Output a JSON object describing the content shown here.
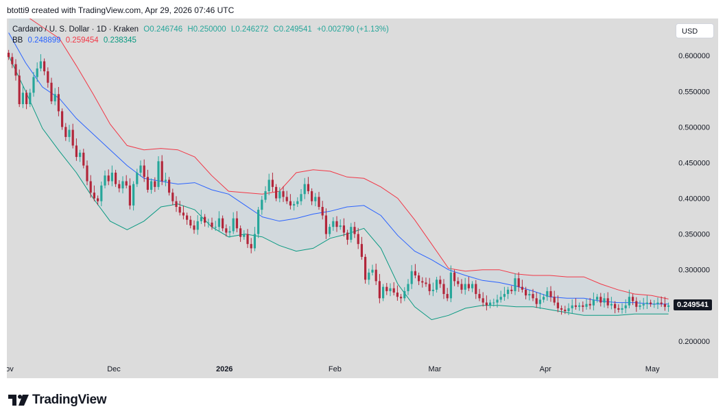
{
  "header": {
    "text": "btotti9 created with TradingView.com, Apr 29, 2026 07:46 UTC"
  },
  "legend": {
    "symbol": "Cardano / U. S. Dollar · 1D · Kraken",
    "open": "O0.246746",
    "high": "H0.250000",
    "low": "L0.246272",
    "close": "C0.249541",
    "change": "+0.002790 (+1.13%)",
    "bb_label": "BB",
    "bb_basis": "0.248899",
    "bb_upper": "0.259454",
    "bb_lower": "0.238345"
  },
  "currency_button": "USD",
  "last_price": "0.249541",
  "logo_text": "TradingView",
  "colors": {
    "up": "#26a69a",
    "down": "#b2263a",
    "basis": "#2962ff",
    "upper": "#f23645",
    "lower": "#089981",
    "band_fill": "#cfd8de"
  },
  "chart_data": {
    "type": "candlestick",
    "title": "Cardano / U. S. Dollar · 1D · Kraken",
    "ylim": [
      0.172,
      0.652
    ],
    "y_ticks": [
      "0.600000",
      "0.550000",
      "0.500000",
      "0.450000",
      "0.400000",
      "0.350000",
      "0.300000",
      "0.200000"
    ],
    "x_ticks": [
      {
        "label": "Nov",
        "date": "2025-11-01",
        "bold": false
      },
      {
        "label": "Dec",
        "date": "2025-12-01",
        "bold": false
      },
      {
        "label": "2026",
        "date": "2026-01-01",
        "bold": true
      },
      {
        "label": "Feb",
        "date": "2026-02-01",
        "bold": false
      },
      {
        "label": "Mar",
        "date": "2026-03-01",
        "bold": false
      },
      {
        "label": "Apr",
        "date": "2026-04-01",
        "bold": false
      },
      {
        "label": "May",
        "date": "2026-05-01",
        "bold": false
      }
    ],
    "start_date": "2025-11-01",
    "closes": [
      0.598,
      0.588,
      0.572,
      0.532,
      0.548,
      0.532,
      0.548,
      0.57,
      0.582,
      0.592,
      0.578,
      0.562,
      0.536,
      0.546,
      0.522,
      0.5,
      0.486,
      0.496,
      0.474,
      0.458,
      0.464,
      0.446,
      0.424,
      0.408,
      0.4,
      0.396,
      0.418,
      0.432,
      0.424,
      0.436,
      0.42,
      0.414,
      0.424,
      0.418,
      0.39,
      0.42,
      0.436,
      0.446,
      0.43,
      0.412,
      0.424,
      0.416,
      0.452,
      0.424,
      0.426,
      0.408,
      0.396,
      0.388,
      0.38,
      0.376,
      0.37,
      0.362,
      0.356,
      0.368,
      0.374,
      0.366,
      0.366,
      0.36,
      0.36,
      0.372,
      0.358,
      0.352,
      0.354,
      0.372,
      0.358,
      0.346,
      0.35,
      0.336,
      0.33,
      0.35,
      0.384,
      0.398,
      0.41,
      0.426,
      0.416,
      0.4,
      0.41,
      0.402,
      0.396,
      0.39,
      0.392,
      0.396,
      0.406,
      0.42,
      0.41,
      0.396,
      0.402,
      0.388,
      0.376,
      0.35,
      0.36,
      0.368,
      0.36,
      0.362,
      0.352,
      0.342,
      0.36,
      0.35,
      0.336,
      0.318,
      0.286,
      0.296,
      0.3,
      0.284,
      0.26,
      0.276,
      0.27,
      0.274,
      0.268,
      0.262,
      0.26,
      0.27,
      0.28,
      0.298,
      0.292,
      0.284,
      0.282,
      0.28,
      0.27,
      0.272,
      0.286,
      0.28,
      0.266,
      0.26,
      0.296,
      0.284,
      0.28,
      0.272,
      0.28,
      0.274,
      0.28,
      0.266,
      0.26,
      0.254,
      0.25,
      0.254,
      0.254,
      0.258,
      0.262,
      0.266,
      0.272,
      0.27,
      0.288,
      0.276,
      0.272,
      0.264,
      0.266,
      0.26,
      0.252,
      0.258,
      0.262,
      0.27,
      0.262,
      0.254,
      0.246,
      0.244,
      0.242,
      0.246,
      0.25,
      0.248,
      0.25,
      0.248,
      0.252,
      0.25,
      0.258,
      0.262,
      0.254,
      0.26,
      0.25,
      0.252,
      0.246,
      0.244,
      0.246,
      0.25,
      0.262,
      0.256,
      0.248,
      0.25,
      0.252,
      0.254,
      0.252,
      0.252,
      0.254,
      0.252,
      0.248,
      0.25
    ],
    "series": [
      {
        "name": "BB basis",
        "values": [
          0.632,
          0.59,
          0.556,
          0.54,
          0.512,
          0.49,
          0.468,
          0.446,
          0.428,
          0.424,
          0.42,
          0.422,
          0.412,
          0.406,
          0.39,
          0.374,
          0.368,
          0.372,
          0.378,
          0.382,
          0.388,
          0.39,
          0.376,
          0.348,
          0.326,
          0.314,
          0.3,
          0.292,
          0.285,
          0.282,
          0.277,
          0.27,
          0.262,
          0.26,
          0.26,
          0.256,
          0.254,
          0.254,
          0.252,
          0.252
        ]
      },
      {
        "name": "BB upper",
        "values": [
          0.662,
          0.656,
          0.64,
          0.624,
          0.586,
          0.546,
          0.504,
          0.474,
          0.468,
          0.47,
          0.468,
          0.458,
          0.432,
          0.41,
          0.408,
          0.406,
          0.41,
          0.436,
          0.44,
          0.438,
          0.43,
          0.428,
          0.416,
          0.4,
          0.37,
          0.336,
          0.302,
          0.298,
          0.3,
          0.3,
          0.294,
          0.292,
          0.292,
          0.29,
          0.29,
          0.28,
          0.272,
          0.266,
          0.264,
          0.259
        ]
      },
      {
        "name": "BB lower",
        "values": [
          0.6,
          0.55,
          0.498,
          0.466,
          0.436,
          0.4,
          0.368,
          0.356,
          0.368,
          0.388,
          0.392,
          0.384,
          0.36,
          0.346,
          0.35,
          0.346,
          0.334,
          0.326,
          0.33,
          0.344,
          0.35,
          0.358,
          0.33,
          0.28,
          0.248,
          0.23,
          0.236,
          0.246,
          0.25,
          0.25,
          0.248,
          0.248,
          0.244,
          0.24,
          0.236,
          0.236,
          0.236,
          0.238,
          0.238,
          0.238
        ]
      }
    ]
  }
}
